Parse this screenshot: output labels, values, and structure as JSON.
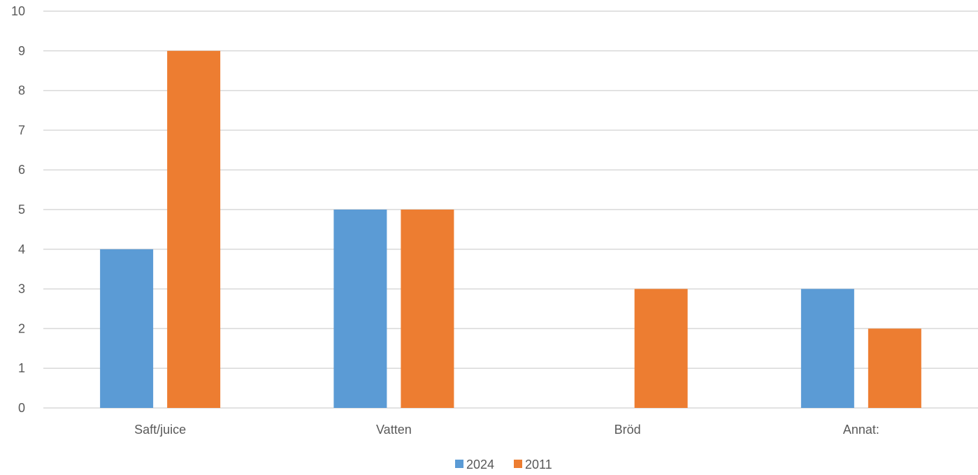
{
  "chart_data": {
    "type": "bar",
    "title": "",
    "xlabel": "",
    "ylabel": "",
    "categories": [
      "Saft/juice",
      "Vatten",
      "Bröd",
      "Annat:"
    ],
    "series": [
      {
        "name": "2024",
        "values": [
          4,
          5,
          0,
          3
        ],
        "color": "#5B9BD5"
      },
      {
        "name": "2011",
        "values": [
          9,
          5,
          3,
          2
        ],
        "color": "#ED7D31"
      }
    ],
    "ylim": [
      0,
      10
    ],
    "yticks": [
      0,
      1,
      2,
      3,
      4,
      5,
      6,
      7,
      8,
      9,
      10
    ],
    "grid": true,
    "legend_position": "bottom"
  }
}
